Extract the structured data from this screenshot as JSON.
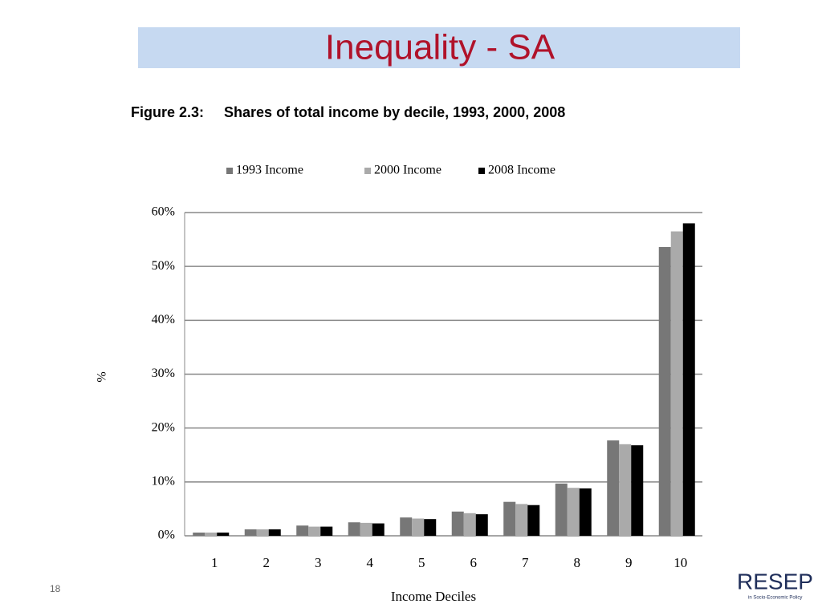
{
  "slide_title": "Inequality - SA",
  "page_number": "18",
  "logo_text": "RESEP",
  "logo_subtext": "in Socio-Economic Policy",
  "chart_data": {
    "type": "bar",
    "title": "Figure 2.3:     Shares of total income by decile, 1993, 2000, 2008",
    "x_label": "Income Deciles",
    "y_label": "%",
    "categories": [
      "1",
      "2",
      "3",
      "4",
      "5",
      "6",
      "7",
      "8",
      "9",
      "10"
    ],
    "series": [
      {
        "name": "1993 Income",
        "color": "#777777",
        "values": [
          0.6,
          1.2,
          1.9,
          2.5,
          3.4,
          4.5,
          6.3,
          9.7,
          17.7,
          53.6
        ]
      },
      {
        "name": "2000 Income",
        "color": "#aaaaaa",
        "values": [
          0.6,
          1.2,
          1.7,
          2.4,
          3.2,
          4.2,
          5.9,
          8.9,
          17.0,
          56.5
        ]
      },
      {
        "name": "2008 Income",
        "color": "#000000",
        "values": [
          0.6,
          1.2,
          1.7,
          2.3,
          3.1,
          4.0,
          5.7,
          8.8,
          16.8,
          58.0
        ]
      }
    ],
    "ylim": [
      0,
      60
    ],
    "yticks": [
      {
        "value": 0,
        "label": "0%"
      },
      {
        "value": 10,
        "label": "10%"
      },
      {
        "value": 20,
        "label": "20%"
      },
      {
        "value": 30,
        "label": "30%"
      },
      {
        "value": 40,
        "label": "40%"
      },
      {
        "value": 50,
        "label": "50%"
      },
      {
        "value": 60,
        "label": "60%"
      }
    ],
    "grid": true,
    "legend": "top"
  }
}
